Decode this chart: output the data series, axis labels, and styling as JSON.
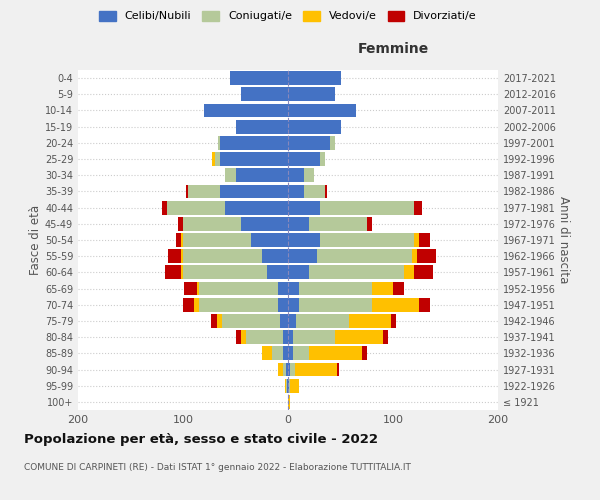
{
  "age_groups": [
    "100+",
    "95-99",
    "90-94",
    "85-89",
    "80-84",
    "75-79",
    "70-74",
    "65-69",
    "60-64",
    "55-59",
    "50-54",
    "45-49",
    "40-44",
    "35-39",
    "30-34",
    "25-29",
    "20-24",
    "15-19",
    "10-14",
    "5-9",
    "0-4"
  ],
  "birth_years": [
    "≤ 1921",
    "1922-1926",
    "1927-1931",
    "1932-1936",
    "1937-1941",
    "1942-1946",
    "1947-1951",
    "1952-1956",
    "1957-1961",
    "1962-1966",
    "1967-1971",
    "1972-1976",
    "1977-1981",
    "1982-1986",
    "1987-1991",
    "1992-1996",
    "1997-2001",
    "2002-2006",
    "2007-2011",
    "2012-2016",
    "2017-2021"
  ],
  "colors": {
    "celibi": "#4472c4",
    "coniugati": "#b5c99a",
    "vedovi": "#ffc000",
    "divorziati": "#c00000"
  },
  "males": {
    "celibi": [
      0,
      1,
      2,
      5,
      5,
      8,
      10,
      10,
      20,
      25,
      35,
      45,
      60,
      65,
      50,
      65,
      65,
      50,
      80,
      45,
      55
    ],
    "coniugati": [
      0,
      1,
      3,
      10,
      35,
      55,
      75,
      75,
      80,
      75,
      65,
      55,
      55,
      30,
      10,
      5,
      2,
      0,
      0,
      0,
      0
    ],
    "vedovi": [
      0,
      1,
      5,
      10,
      5,
      5,
      5,
      2,
      2,
      2,
      2,
      0,
      0,
      0,
      0,
      2,
      0,
      0,
      0,
      0,
      0
    ],
    "divorziati": [
      0,
      0,
      0,
      0,
      5,
      5,
      10,
      12,
      15,
      12,
      5,
      5,
      5,
      2,
      0,
      0,
      0,
      0,
      0,
      0,
      0
    ]
  },
  "females": {
    "celibi": [
      0,
      1,
      2,
      5,
      5,
      8,
      10,
      10,
      20,
      28,
      30,
      20,
      30,
      15,
      15,
      30,
      40,
      50,
      65,
      45,
      50
    ],
    "coniugati": [
      0,
      1,
      5,
      15,
      40,
      50,
      70,
      70,
      90,
      90,
      90,
      55,
      90,
      20,
      10,
      5,
      5,
      0,
      0,
      0,
      0
    ],
    "vedovi": [
      2,
      8,
      40,
      50,
      45,
      40,
      45,
      20,
      10,
      5,
      5,
      0,
      0,
      0,
      0,
      0,
      0,
      0,
      0,
      0,
      0
    ],
    "divorziati": [
      0,
      0,
      2,
      5,
      5,
      5,
      10,
      10,
      18,
      18,
      10,
      5,
      8,
      2,
      0,
      0,
      0,
      0,
      0,
      0,
      0
    ]
  },
  "xlim": 200,
  "title": "Popolazione per età, sesso e stato civile - 2022",
  "subtitle": "COMUNE DI CARPINETI (RE) - Dati ISTAT 1° gennaio 2022 - Elaborazione TUTTITALIA.IT",
  "ylabel_left": "Fasce di età",
  "ylabel_right": "Anni di nascita",
  "xlabel_female": "Femmine",
  "bg_color": "#f0f0f0",
  "plot_bg": "#ffffff"
}
